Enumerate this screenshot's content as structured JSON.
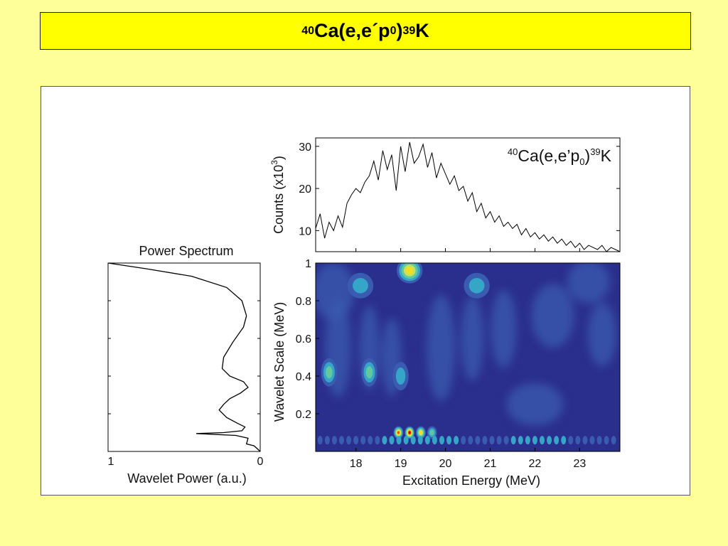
{
  "slide": {
    "title": {
      "pre": "40",
      "a": "Ca(e,e´p",
      "sub": "0",
      "b": ")",
      "post": "39",
      "c": "K"
    }
  },
  "chart_data": [
    {
      "type": "line",
      "title": "Power Spectrum",
      "xlabel": "Wavelet Power (a.u.)",
      "ylabel": "",
      "x_reversed": true,
      "xlim": [
        0,
        1
      ],
      "ylim": [
        0,
        1
      ],
      "xticks": [
        "1",
        "0"
      ],
      "series": [
        {
          "x": [
            1.0,
            0.75,
            0.45,
            0.22,
            0.12,
            0.09,
            0.11,
            0.18,
            0.24,
            0.25,
            0.2,
            0.11,
            0.08,
            0.13,
            0.2,
            0.24,
            0.27,
            0.22,
            0.15,
            0.1,
            0.12,
            0.24,
            0.42,
            0.16,
            0.08,
            0.09,
            0.04,
            0.02,
            0.0
          ],
          "y": [
            1.0,
            0.97,
            0.93,
            0.87,
            0.8,
            0.72,
            0.66,
            0.58,
            0.5,
            0.44,
            0.4,
            0.37,
            0.34,
            0.31,
            0.28,
            0.25,
            0.22,
            0.18,
            0.15,
            0.13,
            0.11,
            0.1,
            0.095,
            0.085,
            0.07,
            0.04,
            0.03,
            0.015,
            0.0
          ]
        }
      ]
    },
    {
      "type": "line",
      "title": "",
      "annotation": {
        "pre": "40",
        "a": "Ca(e,e’p",
        "sub": "0",
        "b": ")",
        "post": "39",
        "c": "K"
      },
      "xlabel": "",
      "ylabel": "Counts (x10",
      "ylabel_sup": "3",
      "ylabel_end": ")",
      "xlim": [
        17.1,
        23.9
      ],
      "ylim": [
        5,
        32
      ],
      "yticks": [
        10,
        20,
        30
      ],
      "series": [
        {
          "x": [
            17.1,
            17.2,
            17.3,
            17.4,
            17.5,
            17.6,
            17.7,
            17.8,
            17.9,
            18.0,
            18.1,
            18.2,
            18.3,
            18.4,
            18.5,
            18.6,
            18.7,
            18.8,
            18.9,
            19.0,
            19.1,
            19.2,
            19.3,
            19.4,
            19.5,
            19.6,
            19.7,
            19.8,
            19.9,
            20.0,
            20.1,
            20.2,
            20.3,
            20.4,
            20.5,
            20.6,
            20.7,
            20.8,
            20.9,
            21.0,
            21.1,
            21.2,
            21.3,
            21.4,
            21.5,
            21.6,
            21.7,
            21.8,
            21.9,
            22.0,
            22.1,
            22.2,
            22.3,
            22.4,
            22.5,
            22.6,
            22.7,
            22.8,
            22.9,
            23.0,
            23.1,
            23.2,
            23.3,
            23.4,
            23.5,
            23.6,
            23.7,
            23.8,
            23.9
          ],
          "y": [
            10.5,
            14.0,
            8.2,
            12.0,
            10.0,
            13.5,
            10.8,
            16.5,
            18.5,
            20.0,
            19.0,
            21.5,
            23.0,
            26.5,
            22.0,
            29.0,
            24.5,
            28.0,
            19.5,
            30.0,
            24.0,
            31.0,
            26.0,
            27.5,
            30.5,
            25.0,
            28.5,
            22.5,
            26.0,
            23.5,
            21.0,
            23.0,
            19.5,
            20.5,
            17.0,
            19.0,
            14.5,
            16.5,
            13.0,
            14.5,
            12.0,
            13.5,
            11.0,
            12.0,
            10.5,
            11.5,
            9.0,
            10.5,
            8.5,
            9.5,
            8.0,
            9.0,
            7.5,
            8.5,
            7.0,
            8.0,
            6.5,
            7.5,
            6.0,
            7.0,
            5.5,
            6.5,
            6.0,
            5.5,
            6.5,
            5.0,
            6.0,
            5.5,
            5.0
          ]
        }
      ]
    },
    {
      "type": "heatmap",
      "title": "",
      "xlabel": "Excitation Energy (MeV)",
      "ylabel": "Wavelet Scale (MeV)",
      "xlim": [
        17.1,
        23.9
      ],
      "ylim": [
        0,
        1
      ],
      "xticks": [
        18,
        19,
        20,
        21,
        22,
        23
      ],
      "yticks": [
        "0.2",
        "0.4",
        "0.6",
        "0.8",
        "1"
      ],
      "colormap": [
        "#2a2e8c",
        "#3a5cb0",
        "#35a6c8",
        "#62c8a0",
        "#c8e060",
        "#f0e020",
        "#e85010",
        "#c00000"
      ],
      "blobs": [
        {
          "x": 19.2,
          "y": 0.1,
          "level": 1.0
        },
        {
          "x": 18.95,
          "y": 0.1,
          "level": 0.85
        },
        {
          "x": 19.45,
          "y": 0.1,
          "level": 0.75
        },
        {
          "x": 19.7,
          "y": 0.1,
          "level": 0.45
        },
        {
          "x": 19.2,
          "y": 0.96,
          "level": 0.65
        },
        {
          "x": 18.1,
          "y": 0.88,
          "level": 0.35
        },
        {
          "x": 20.7,
          "y": 0.88,
          "level": 0.35
        },
        {
          "x": 17.4,
          "y": 0.42,
          "level": 0.38
        },
        {
          "x": 18.3,
          "y": 0.42,
          "level": 0.38
        },
        {
          "x": 19.0,
          "y": 0.4,
          "level": 0.32
        }
      ]
    }
  ],
  "colors": {
    "background": "#ffff99",
    "title_box": "#ffff00",
    "panel": "#ffffff"
  }
}
